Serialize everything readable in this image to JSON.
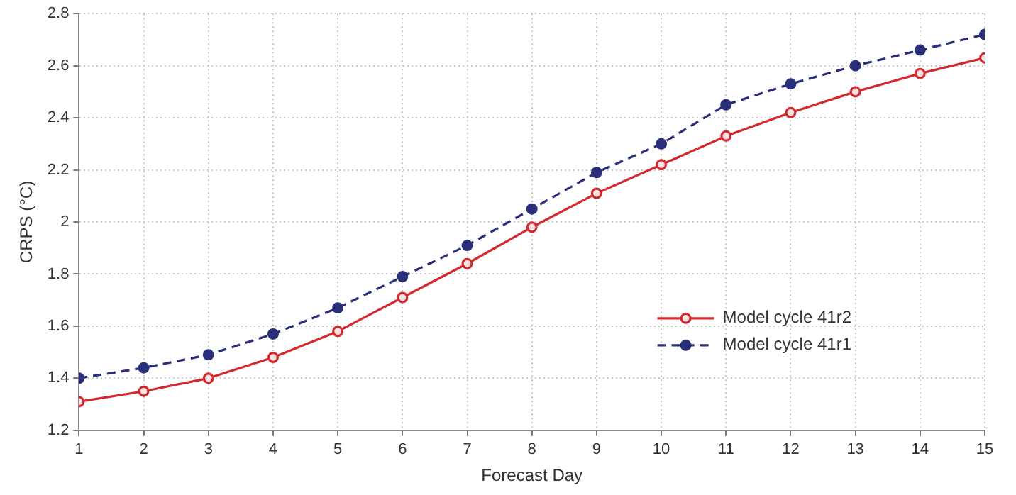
{
  "chart_data": {
    "type": "line",
    "xlabel": "Forecast Day",
    "ylabel": "CRPS (°C)",
    "x": [
      1,
      2,
      3,
      4,
      5,
      6,
      7,
      8,
      9,
      10,
      11,
      12,
      13,
      14,
      15
    ],
    "series": [
      {
        "name": "Model cycle 41r2",
        "color": "#d42a2f",
        "marker": "circle",
        "line_style": "solid",
        "values": [
          1.31,
          1.35,
          1.4,
          1.48,
          1.58,
          1.71,
          1.84,
          1.98,
          2.11,
          2.22,
          2.33,
          2.42,
          2.5,
          2.57,
          2.63
        ]
      },
      {
        "name": "Model cycle 41r1",
        "color": "#2a2f7a",
        "marker": "circle",
        "line_style": "dashed",
        "values": [
          1.4,
          1.44,
          1.49,
          1.57,
          1.67,
          1.79,
          1.91,
          2.05,
          2.19,
          2.3,
          2.45,
          2.53,
          2.6,
          2.66,
          2.72
        ]
      }
    ],
    "xlim": [
      1,
      15
    ],
    "xticks": [
      1,
      2,
      3,
      4,
      5,
      6,
      7,
      8,
      9,
      10,
      11,
      12,
      13,
      14,
      15
    ],
    "ylim": [
      1.2,
      2.8
    ],
    "yticks": [
      1.2,
      1.4,
      1.6,
      1.8,
      2,
      2.2,
      2.4,
      2.6,
      2.8
    ],
    "grid": true,
    "legend": "bottom right"
  }
}
